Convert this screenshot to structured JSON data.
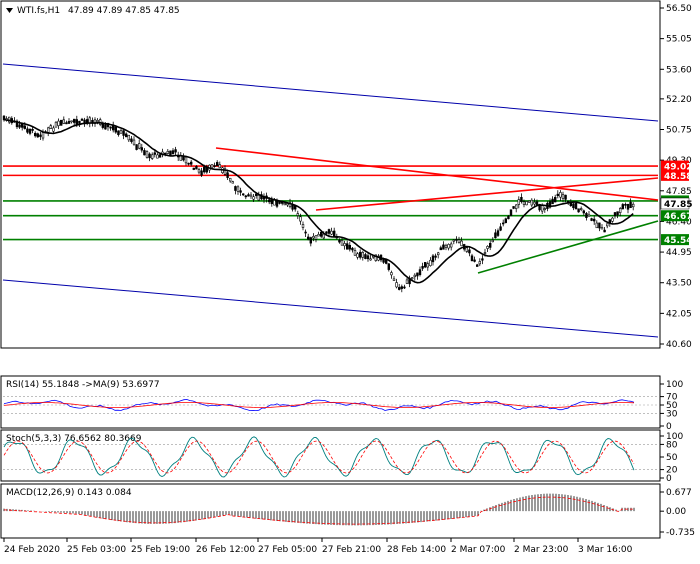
{
  "header": {
    "symbol": "WTI.fs,H1",
    "ohlc": "47.89 47.89 47.85 47.85",
    "menu_icon": "triangle-down-icon"
  },
  "price_axis": {
    "ticks": [
      "56.50",
      "55.05",
      "53.60",
      "52.20",
      "50.75",
      "49.30",
      "47.85",
      "46.40",
      "44.95",
      "43.50",
      "42.05",
      "40.60"
    ],
    "current_price": "47.85"
  },
  "levels": [
    {
      "value": 49.02,
      "label": "49.02",
      "color": "#ff0000"
    },
    {
      "value": 48.58,
      "label": "48.58",
      "color": "#ff0000"
    },
    {
      "value": 47.37,
      "label": "47.37",
      "color": "#008000"
    },
    {
      "value": 46.67,
      "label": "46.67",
      "color": "#008000"
    },
    {
      "value": 45.54,
      "label": "45.54",
      "color": "#008000"
    }
  ],
  "time_axis": {
    "labels": [
      "24 Feb 2020",
      "25 Feb 03:00",
      "25 Feb 19:00",
      "26 Feb 12:00",
      "27 Feb 05:00",
      "27 Feb 21:00",
      "28 Feb 14:00",
      "2 Mar 07:00",
      "2 Mar 23:00",
      "3 Mar 16:00"
    ]
  },
  "rsi": {
    "title": "RSI(14) 55.1848 ->MA(9) 53.6977",
    "ticks": [
      "100",
      "70",
      "50",
      "30",
      "0"
    ]
  },
  "stoch": {
    "title": "Stoch(5,3,3) 76.6562 80.3669",
    "ticks": [
      "100",
      "80",
      "50",
      "20",
      "0"
    ]
  },
  "macd": {
    "title": "MACD(12,26,9) 0.143 0.084",
    "ticks": [
      "0.677",
      "0.00",
      "-0.735"
    ]
  },
  "colors": {
    "candle": "#000000",
    "ma": "#000000",
    "channel": "#0000aa",
    "resistance": "#ff0000",
    "support": "#008000",
    "rsi_line": "#0000ff",
    "rsi_ma": "#ff0000",
    "signal": "#ff0000"
  }
}
